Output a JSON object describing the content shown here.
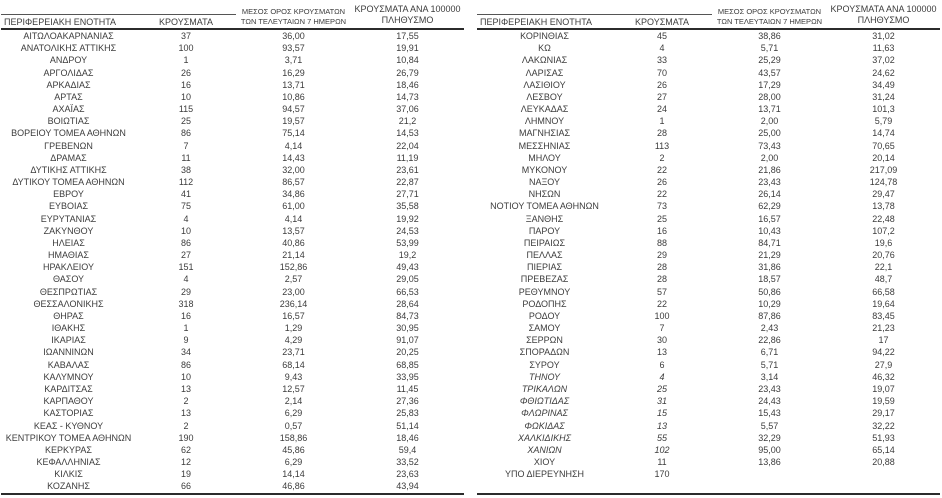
{
  "accent_colors": {
    "text": "#3c3c3c",
    "rule_thin": "#555555",
    "rule_thick": "#2b2b2b",
    "background": "#ffffff"
  },
  "table": {
    "headers": {
      "region": "ΠΕΡΙΦΕΡΕΙΑΚΗ ΕΝΟΤΗΤΑ",
      "cases": "ΚΡΟΥΣΜΑΤΑ",
      "avg_line1": "ΜΕΣΟΣ ΟΡΟΣ ΚΡΟΥΣΜΑΤΩΝ",
      "avg_line2": "ΤΩΝ ΤΕΛΕΥΤΑΙΩΝ 7 ΗΜΕΡΩΝ",
      "per_line1": "ΚΡΟΥΣΜΑΤΑ ΑΝΑ 100000",
      "per_line2": "ΠΛΗΘΥΣΜΟ"
    },
    "left_rows": [
      {
        "region": "ΑΙΤΩΛΟΑΚΑΡΝΑΝΙΑΣ",
        "cases": "37",
        "avg": "36,00",
        "per100k": "17,55"
      },
      {
        "region": "ΑΝΑΤΟΛΙΚΗΣ ΑΤΤΙΚΗΣ",
        "cases": "100",
        "avg": "93,57",
        "per100k": "19,91"
      },
      {
        "region": "ΑΝΔΡΟΥ",
        "cases": "1",
        "avg": "3,71",
        "per100k": "10,84"
      },
      {
        "region": "ΑΡΓΟΛΙΔΑΣ",
        "cases": "26",
        "avg": "16,29",
        "per100k": "26,79"
      },
      {
        "region": "ΑΡΚΑΔΙΑΣ",
        "cases": "16",
        "avg": "13,71",
        "per100k": "18,46"
      },
      {
        "region": "ΑΡΤΑΣ",
        "cases": "10",
        "avg": "10,86",
        "per100k": "14,73"
      },
      {
        "region": "ΑΧΑΪΑΣ",
        "cases": "115",
        "avg": "94,57",
        "per100k": "37,06"
      },
      {
        "region": "ΒΟΙΩΤΙΑΣ",
        "cases": "25",
        "avg": "19,57",
        "per100k": "21,2"
      },
      {
        "region": "ΒΟΡΕΙΟΥ ΤΟΜΕΑ ΑΘΗΝΩΝ",
        "cases": "86",
        "avg": "75,14",
        "per100k": "14,53"
      },
      {
        "region": "ΓΡΕΒΕΝΩΝ",
        "cases": "7",
        "avg": "4,14",
        "per100k": "22,04"
      },
      {
        "region": "ΔΡΑΜΑΣ",
        "cases": "11",
        "avg": "14,43",
        "per100k": "11,19"
      },
      {
        "region": "ΔΥΤΙΚΗΣ ΑΤΤΙΚΗΣ",
        "cases": "38",
        "avg": "32,00",
        "per100k": "23,61"
      },
      {
        "region": "ΔΥΤΙΚΟΥ ΤΟΜΕΑ ΑΘΗΝΩΝ",
        "cases": "112",
        "avg": "86,57",
        "per100k": "22,87"
      },
      {
        "region": "ΕΒΡΟΥ",
        "cases": "41",
        "avg": "34,86",
        "per100k": "27,71"
      },
      {
        "region": "ΕΥΒΟΙΑΣ",
        "cases": "75",
        "avg": "61,00",
        "per100k": "35,58"
      },
      {
        "region": "ΕΥΡΥΤΑΝΙΑΣ",
        "cases": "4",
        "avg": "4,14",
        "per100k": "19,92"
      },
      {
        "region": "ΖΑΚΥΝΘΟΥ",
        "cases": "10",
        "avg": "13,57",
        "per100k": "24,53"
      },
      {
        "region": "ΗΛΕΙΑΣ",
        "cases": "86",
        "avg": "40,86",
        "per100k": "53,99"
      },
      {
        "region": "ΗΜΑΘΙΑΣ",
        "cases": "27",
        "avg": "21,14",
        "per100k": "19,2"
      },
      {
        "region": "ΗΡΑΚΛΕΙΟΥ",
        "cases": "151",
        "avg": "152,86",
        "per100k": "49,43"
      },
      {
        "region": "ΘΑΣΟΥ",
        "cases": "4",
        "avg": "2,57",
        "per100k": "29,05"
      },
      {
        "region": "ΘΕΣΠΡΩΤΙΑΣ",
        "cases": "29",
        "avg": "23,00",
        "per100k": "66,53"
      },
      {
        "region": "ΘΕΣΣΑΛΟΝΙΚΗΣ",
        "cases": "318",
        "avg": "236,14",
        "per100k": "28,64"
      },
      {
        "region": "ΘΗΡΑΣ",
        "cases": "16",
        "avg": "16,57",
        "per100k": "84,73"
      },
      {
        "region": "ΙΘΑΚΗΣ",
        "cases": "1",
        "avg": "1,29",
        "per100k": "30,95"
      },
      {
        "region": "ΙΚΑΡΙΑΣ",
        "cases": "9",
        "avg": "4,29",
        "per100k": "91,07"
      },
      {
        "region": "ΙΩΑΝΝΙΝΩΝ",
        "cases": "34",
        "avg": "23,71",
        "per100k": "20,25"
      },
      {
        "region": "ΚΑΒΑΛΑΣ",
        "cases": "86",
        "avg": "68,14",
        "per100k": "68,85"
      },
      {
        "region": "ΚΑΛΥΜΝΟΥ",
        "cases": "10",
        "avg": "9,43",
        "per100k": "33,95"
      },
      {
        "region": "ΚΑΡΔΙΤΣΑΣ",
        "cases": "13",
        "avg": "12,57",
        "per100k": "11,45"
      },
      {
        "region": "ΚΑΡΠΑΘΟΥ",
        "cases": "2",
        "avg": "2,14",
        "per100k": "27,36"
      },
      {
        "region": "ΚΑΣΤΟΡΙΑΣ",
        "cases": "13",
        "avg": "6,29",
        "per100k": "25,83"
      },
      {
        "region": "ΚΕΑΣ - ΚΥΘΝΟΥ",
        "cases": "2",
        "avg": "0,57",
        "per100k": "51,14"
      },
      {
        "region": "ΚΕΝΤΡΙΚΟΥ ΤΟΜΕΑ ΑΘΗΝΩΝ",
        "cases": "190",
        "avg": "158,86",
        "per100k": "18,46"
      },
      {
        "region": "ΚΕΡΚΥΡΑΣ",
        "cases": "62",
        "avg": "45,86",
        "per100k": "59,4"
      },
      {
        "region": "ΚΕΦΑΛΛΗΝΙΑΣ",
        "cases": "12",
        "avg": "6,29",
        "per100k": "33,52"
      },
      {
        "region": "ΚΙΛΚΙΣ",
        "cases": "19",
        "avg": "14,14",
        "per100k": "23,63"
      },
      {
        "region": "ΚΟΖΑΝΗΣ",
        "cases": "66",
        "avg": "46,86",
        "per100k": "43,94"
      }
    ],
    "right_rows": [
      {
        "region": "ΚΟΡΙΝΘΙΑΣ",
        "cases": "45",
        "avg": "38,86",
        "per100k": "31,02"
      },
      {
        "region": "ΚΩ",
        "cases": "4",
        "avg": "5,71",
        "per100k": "11,63"
      },
      {
        "region": "ΛΑΚΩΝΙΑΣ",
        "cases": "33",
        "avg": "25,29",
        "per100k": "37,02"
      },
      {
        "region": "ΛΑΡΙΣΑΣ",
        "cases": "70",
        "avg": "43,57",
        "per100k": "24,62"
      },
      {
        "region": "ΛΑΣΙΘΙΟΥ",
        "cases": "26",
        "avg": "17,29",
        "per100k": "34,49"
      },
      {
        "region": "ΛΕΣΒΟΥ",
        "cases": "27",
        "avg": "28,00",
        "per100k": "31,24"
      },
      {
        "region": "ΛΕΥΚΑΔΑΣ",
        "cases": "24",
        "avg": "13,71",
        "per100k": "101,3"
      },
      {
        "region": "ΛΗΜΝΟΥ",
        "cases": "1",
        "avg": "2,00",
        "per100k": "5,79"
      },
      {
        "region": "ΜΑΓΝΗΣΙΑΣ",
        "cases": "28",
        "avg": "25,00",
        "per100k": "14,74"
      },
      {
        "region": "ΜΕΣΣΗΝΙΑΣ",
        "cases": "113",
        "avg": "73,43",
        "per100k": "70,65"
      },
      {
        "region": "ΜΗΛΟΥ",
        "cases": "2",
        "avg": "2,00",
        "per100k": "20,14"
      },
      {
        "region": "ΜΥΚΟΝΟΥ",
        "cases": "22",
        "avg": "21,86",
        "per100k": "217,09"
      },
      {
        "region": "ΝΑΞΟΥ",
        "cases": "26",
        "avg": "23,43",
        "per100k": "124,78"
      },
      {
        "region": "ΝΗΣΩΝ",
        "cases": "22",
        "avg": "26,14",
        "per100k": "29,47"
      },
      {
        "region": "ΝΟΤΙΟΥ ΤΟΜΕΑ ΑΘΗΝΩΝ",
        "cases": "73",
        "avg": "62,29",
        "per100k": "13,78"
      },
      {
        "region": "ΞΑΝΘΗΣ",
        "cases": "25",
        "avg": "16,57",
        "per100k": "22,48"
      },
      {
        "region": "ΠΑΡΟΥ",
        "cases": "16",
        "avg": "10,43",
        "per100k": "107,2"
      },
      {
        "region": "ΠΕΙΡΑΙΩΣ",
        "cases": "88",
        "avg": "84,71",
        "per100k": "19,6"
      },
      {
        "region": "ΠΕΛΛΑΣ",
        "cases": "29",
        "avg": "21,29",
        "per100k": "20,76"
      },
      {
        "region": "ΠΙΕΡΙΑΣ",
        "cases": "28",
        "avg": "31,86",
        "per100k": "22,1"
      },
      {
        "region": "ΠΡΕΒΕΖΑΣ",
        "cases": "28",
        "avg": "18,57",
        "per100k": "48,7"
      },
      {
        "region": "ΡΕΘΥΜΝΟΥ",
        "cases": "57",
        "avg": "50,86",
        "per100k": "66,58"
      },
      {
        "region": "ΡΟΔΟΠΗΣ",
        "cases": "22",
        "avg": "10,29",
        "per100k": "19,64"
      },
      {
        "region": "ΡΟΔΟΥ",
        "cases": "100",
        "avg": "87,86",
        "per100k": "83,45"
      },
      {
        "region": "ΣΑΜΟΥ",
        "cases": "7",
        "avg": "2,43",
        "per100k": "21,23"
      },
      {
        "region": "ΣΕΡΡΩΝ",
        "cases": "30",
        "avg": "22,86",
        "per100k": "17"
      },
      {
        "region": "ΣΠΟΡΑΔΩΝ",
        "cases": "13",
        "avg": "6,71",
        "per100k": "94,22"
      },
      {
        "region": "ΣΥΡΟΥ",
        "cases": "6",
        "avg": "5,71",
        "per100k": "27,9"
      },
      {
        "region": "ΤΗΝΟΥ",
        "cases": "4",
        "avg": "3,14",
        "per100k": "46,32",
        "italic": true
      },
      {
        "region": "ΤΡΙΚΑΛΩΝ",
        "cases": "25",
        "avg": "23,43",
        "per100k": "19,07",
        "italic": true
      },
      {
        "region": "ΦΘΙΩΤΙΔΑΣ",
        "cases": "31",
        "avg": "24,43",
        "per100k": "19,59",
        "italic": true
      },
      {
        "region": "ΦΛΩΡΙΝΑΣ",
        "cases": "15",
        "avg": "15,43",
        "per100k": "29,17",
        "italic": true
      },
      {
        "region": "ΦΩΚΙΔΑΣ",
        "cases": "13",
        "avg": "5,57",
        "per100k": "32,22",
        "italic": true
      },
      {
        "region": "ΧΑΛΚΙΔΙΚΗΣ",
        "cases": "55",
        "avg": "32,29",
        "per100k": "51,93",
        "italic": true
      },
      {
        "region": "ΧΑΝΙΩΝ",
        "cases": "102",
        "avg": "95,00",
        "per100k": "65,14",
        "italic": true
      },
      {
        "region": "ΧΙΟΥ",
        "cases": "11",
        "avg": "13,86",
        "per100k": "20,88"
      },
      {
        "region": "ΥΠΟ ΔΙΕΡΕΥΝΗΣΗ",
        "cases": "170",
        "avg": "",
        "per100k": ""
      }
    ]
  }
}
